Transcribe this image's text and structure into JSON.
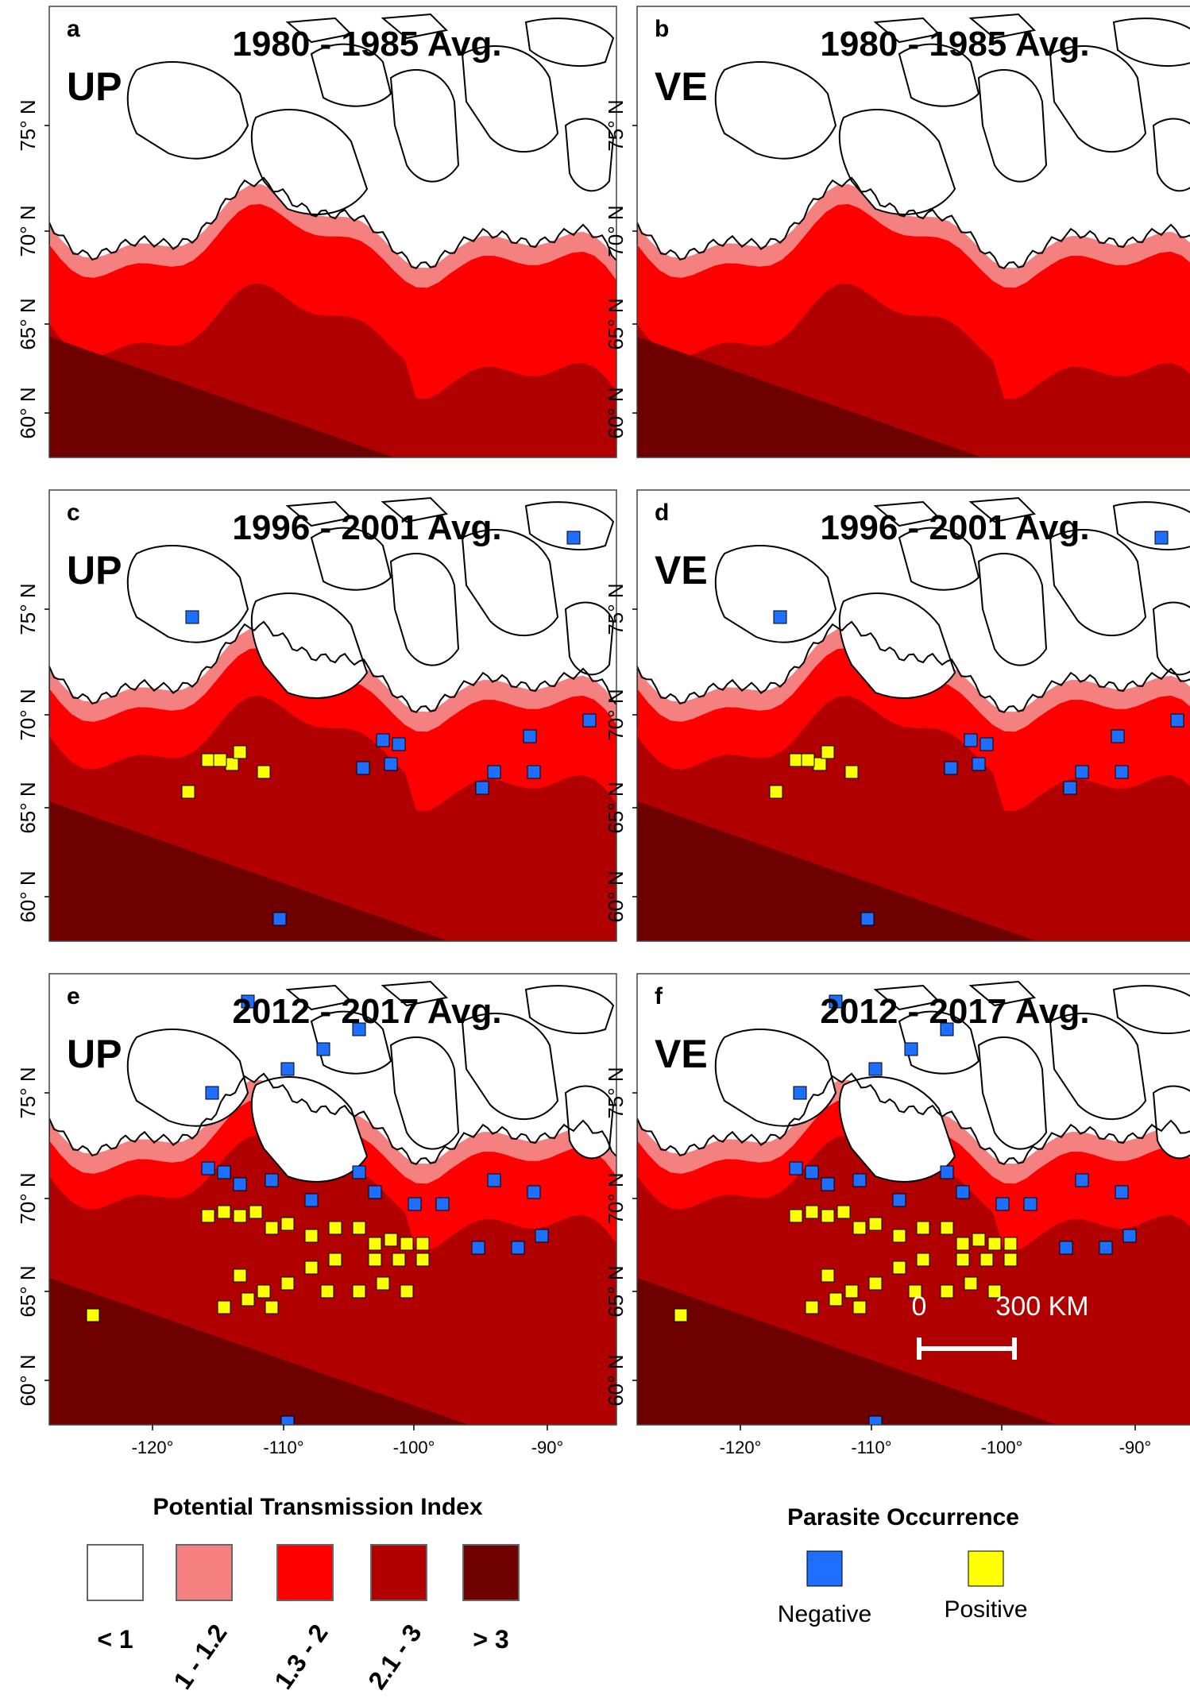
{
  "figure": {
    "panels": [
      {
        "letter": "a",
        "period": "1980 - 1985 Avg.",
        "species": "UP",
        "pattern": "early"
      },
      {
        "letter": "b",
        "period": "1980 - 1985 Avg.",
        "species": "VE",
        "pattern": "early"
      },
      {
        "letter": "c",
        "period": "1996 - 2001 Avg.",
        "species": "UP",
        "pattern": "mid"
      },
      {
        "letter": "d",
        "period": "1996 - 2001 Avg.",
        "species": "VE",
        "pattern": "mid"
      },
      {
        "letter": "e",
        "period": "2012 - 2017 Avg.",
        "species": "UP",
        "pattern": "late"
      },
      {
        "letter": "f",
        "period": "2012 - 2017 Avg.",
        "species": "VE",
        "pattern": "late"
      }
    ],
    "lat_ticks": [
      "75° N",
      "70° N",
      "65° N",
      "60° N"
    ],
    "lon_ticks": [
      "-120°",
      "-110°",
      "-100°",
      "-90°"
    ],
    "scale_bar": {
      "start": "0",
      "end": "300 KM"
    }
  },
  "legend": {
    "transmission": {
      "title": "Potential Transmission Index",
      "classes": [
        {
          "label": "< 1",
          "color": "#ffffff"
        },
        {
          "label": "1 - 1.2",
          "color": "#f58080"
        },
        {
          "label": "1.3 - 2",
          "color": "#ff0000"
        },
        {
          "label": "2.1 - 3",
          "color": "#b00000"
        },
        {
          "label": "> 3",
          "color": "#6e0000"
        }
      ]
    },
    "occurrence": {
      "title": "Parasite Occurrence",
      "items": [
        {
          "label": "Negative",
          "color": "#1e6eff"
        },
        {
          "label": "Positive",
          "color": "#ffff00"
        }
      ]
    }
  }
}
